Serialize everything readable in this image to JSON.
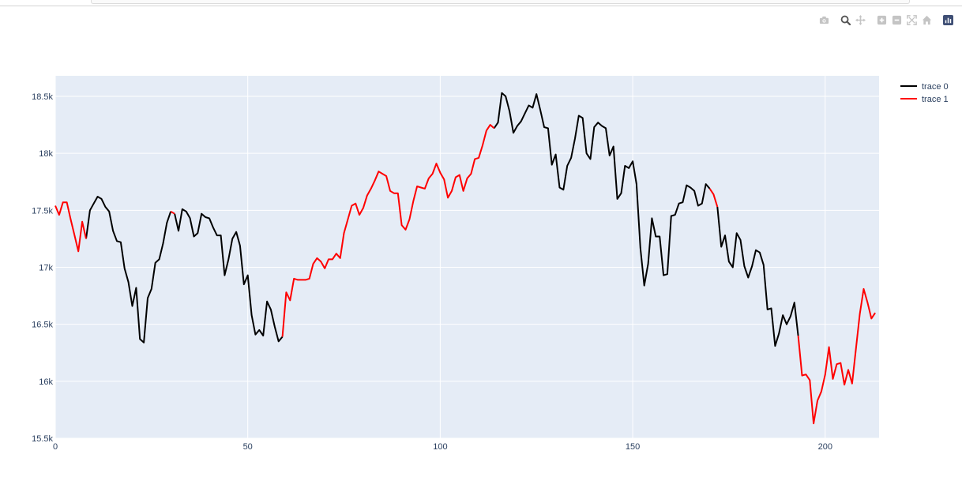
{
  "modebar": {
    "buttons": [
      {
        "name": "camera-icon"
      },
      {
        "name": "zoom-icon"
      },
      {
        "name": "pan-icon"
      },
      {
        "name": "zoom-in-icon"
      },
      {
        "name": "zoom-out-icon"
      },
      {
        "name": "autoscale-icon"
      },
      {
        "name": "reset-axes-icon"
      },
      {
        "name": "plotly-logo-icon"
      }
    ]
  },
  "chart_data": {
    "type": "line",
    "xlim": [
      0,
      214
    ],
    "ylim": [
      15500,
      18680
    ],
    "x_ticks": [
      0,
      50,
      100,
      150,
      200
    ],
    "y_ticks": [
      15500,
      16000,
      16500,
      17000,
      17500,
      18000,
      18500
    ],
    "y_tick_labels": [
      "15.5k",
      "16k",
      "16.5k",
      "17k",
      "17.5k",
      "18k",
      "18.5k"
    ],
    "x_tick_labels": [
      "0",
      "50",
      "100",
      "150",
      "200"
    ],
    "grid": true,
    "legend_position": "top-right",
    "colors": {
      "plot_bg": "#e5ecf6",
      "grid": "#ffffff",
      "trace0": "#000000",
      "trace1": "#ff0000"
    },
    "y": [
      17540,
      17460,
      17570,
      17570,
      17420,
      17280,
      17140,
      17400,
      17250,
      17500,
      17560,
      17620,
      17600,
      17530,
      17490,
      17320,
      17230,
      17220,
      16990,
      16870,
      16660,
      16820,
      16370,
      16340,
      16730,
      16810,
      17040,
      17070,
      17210,
      17390,
      17490,
      17470,
      17320,
      17510,
      17490,
      17430,
      17270,
      17300,
      17470,
      17440,
      17430,
      17350,
      17280,
      17280,
      16930,
      17070,
      17250,
      17310,
      17190,
      16850,
      16930,
      16580,
      16410,
      16450,
      16400,
      16700,
      16630,
      16480,
      16350,
      16390,
      16780,
      16710,
      16900,
      16890,
      16890,
      16890,
      16900,
      17030,
      17080,
      17050,
      16990,
      17070,
      17070,
      17120,
      17080,
      17300,
      17420,
      17540,
      17560,
      17460,
      17520,
      17630,
      17690,
      17760,
      17840,
      17820,
      17800,
      17670,
      17650,
      17650,
      17370,
      17330,
      17420,
      17580,
      17710,
      17700,
      17690,
      17780,
      17820,
      17910,
      17830,
      17770,
      17610,
      17670,
      17790,
      17810,
      17670,
      17780,
      17820,
      17950,
      17960,
      18070,
      18200,
      18250,
      18220,
      18270,
      18530,
      18500,
      18370,
      18180,
      18240,
      18280,
      18350,
      18420,
      18400,
      18520,
      18380,
      18230,
      18220,
      17900,
      17990,
      17700,
      17680,
      17890,
      17960,
      18130,
      18330,
      18310,
      18000,
      17950,
      18230,
      18270,
      18240,
      18220,
      17980,
      18060,
      17600,
      17650,
      17890,
      17870,
      17930,
      17730,
      17170,
      16840,
      17030,
      17430,
      17270,
      17270,
      16930,
      16940,
      17450,
      17460,
      17560,
      17570,
      17720,
      17700,
      17670,
      17540,
      17560,
      17730,
      17690,
      17640,
      17530,
      17180,
      17280,
      17050,
      17000,
      17300,
      17240,
      17010,
      16910,
      17010,
      17150,
      17130,
      17020,
      16630,
      16640,
      16310,
      16420,
      16580,
      16500,
      16570,
      16690,
      16400,
      16050,
      16060,
      16010,
      15630,
      15830,
      15910,
      16060,
      16300,
      16020,
      16150,
      16160,
      15970,
      16100,
      15980,
      16290,
      16590,
      16810,
      16690,
      16550,
      16600
    ],
    "series": [
      {
        "name": "trace 0",
        "color": "#000000",
        "segments": [
          [
            8,
            30
          ],
          [
            31,
            59
          ],
          [
            114,
            170
          ],
          [
            172,
            193
          ]
        ]
      },
      {
        "name": "trace 1",
        "color": "#ff0000",
        "segments": [
          [
            0,
            8
          ],
          [
            30,
            31
          ],
          [
            59,
            114
          ],
          [
            170,
            172
          ],
          [
            193,
            213
          ]
        ]
      }
    ]
  }
}
